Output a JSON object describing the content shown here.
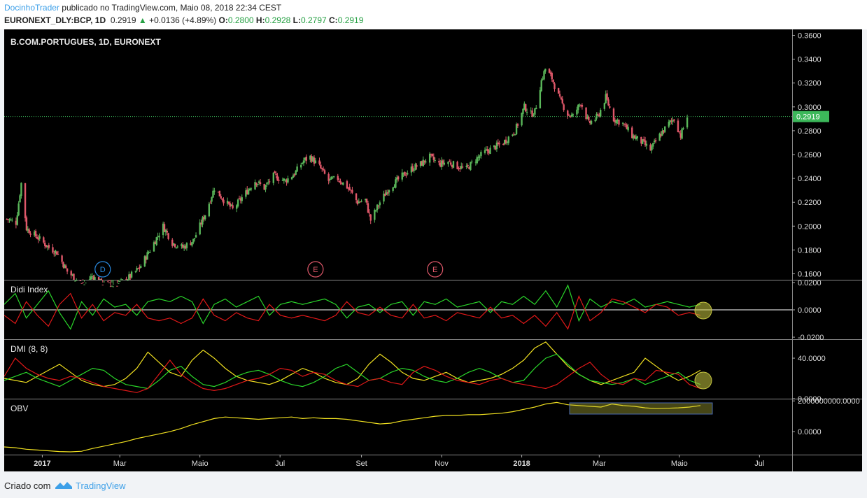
{
  "header": {
    "author": "DocinhoTrader",
    "published_text": "publicado no TradingView.com, Maio 08, 2018 22:34 CEST",
    "symbol": "EURONEXT_DLY:BCP, 1D",
    "last": "0.2919",
    "change_arrow": "▲",
    "change": "+0.0136 (+4.89%)",
    "o_label": "O:",
    "o": "0.2800",
    "h_label": "H:",
    "h": "0.2928",
    "l_label": "L:",
    "l": "0.2797",
    "c_label": "C:",
    "c": "0.2919"
  },
  "footer": {
    "created": "Criado com",
    "brand": "TradingView"
  },
  "colors": {
    "background": "#000000",
    "up": "#5ab75a",
    "down": "#e0586a",
    "didi_green": "#2ad62a",
    "didi_red": "#e01818",
    "dmi_yellow": "#f0e020",
    "obv_yellow": "#f0e020",
    "highlight": "#c8c840",
    "last_price_tag": "#3cb85a"
  },
  "chart_data": [
    {
      "type": "candlestick",
      "title": "B.COM.PORTUGUES, 1D, EURONEXT",
      "ylim": [
        0.155,
        0.365
      ],
      "y_ticks": [
        "0.1600",
        "0.1800",
        "0.2000",
        "0.2200",
        "0.2400",
        "0.2600",
        "0.2800",
        "0.3000",
        "0.3200",
        "0.3400",
        "0.3600"
      ],
      "last_price": 0.2919,
      "last_price_label": "0.2919",
      "x_ticks": [
        "2017",
        "Mar",
        "Maio",
        "Jul",
        "Set",
        "Nov",
        "2018",
        "Mar",
        "Maio",
        "Jul"
      ],
      "markers": [
        {
          "label": "D",
          "date": "2017-02-16"
        },
        {
          "label": "E",
          "date": "2017-07-28"
        },
        {
          "label": "E",
          "date": "2017-10-27"
        }
      ],
      "price_path": [
        [
          "2016-12-05",
          0.206
        ],
        [
          "2016-12-12",
          0.203
        ],
        [
          "2016-12-16",
          0.236
        ],
        [
          "2016-12-20",
          0.198
        ],
        [
          "2016-12-29",
          0.19
        ],
        [
          "2017-01-06",
          0.182
        ],
        [
          "2017-01-12",
          0.178
        ],
        [
          "2017-01-20",
          0.162
        ],
        [
          "2017-02-01",
          0.15
        ],
        [
          "2017-02-08",
          0.158
        ],
        [
          "2017-02-15",
          0.152
        ],
        [
          "2017-02-24",
          0.15
        ],
        [
          "2017-03-06",
          0.155
        ],
        [
          "2017-03-16",
          0.165
        ],
        [
          "2017-03-24",
          0.18
        ],
        [
          "2017-04-03",
          0.2
        ],
        [
          "2017-04-10",
          0.186
        ],
        [
          "2017-04-18",
          0.182
        ],
        [
          "2017-04-26",
          0.188
        ],
        [
          "2017-05-05",
          0.21
        ],
        [
          "2017-05-12",
          0.232
        ],
        [
          "2017-05-19",
          0.222
        ],
        [
          "2017-05-26",
          0.214
        ],
        [
          "2017-06-05",
          0.228
        ],
        [
          "2017-06-12",
          0.238
        ],
        [
          "2017-06-19",
          0.232
        ],
        [
          "2017-06-26",
          0.242
        ],
        [
          "2017-07-05",
          0.238
        ],
        [
          "2017-07-12",
          0.244
        ],
        [
          "2017-07-19",
          0.255
        ],
        [
          "2017-07-24",
          0.258
        ],
        [
          "2017-07-31",
          0.25
        ],
        [
          "2017-08-07",
          0.238
        ],
        [
          "2017-08-14",
          0.24
        ],
        [
          "2017-08-22",
          0.232
        ],
        [
          "2017-08-29",
          0.22
        ],
        [
          "2017-09-04",
          0.222
        ],
        [
          "2017-09-08",
          0.205
        ],
        [
          "2017-09-15",
          0.22
        ],
        [
          "2017-09-22",
          0.232
        ],
        [
          "2017-10-02",
          0.242
        ],
        [
          "2017-10-09",
          0.248
        ],
        [
          "2017-10-16",
          0.252
        ],
        [
          "2017-10-23",
          0.258
        ],
        [
          "2017-10-30",
          0.252
        ],
        [
          "2017-11-06",
          0.254
        ],
        [
          "2017-11-13",
          0.25
        ],
        [
          "2017-11-20",
          0.248
        ],
        [
          "2017-11-27",
          0.256
        ],
        [
          "2017-12-04",
          0.262
        ],
        [
          "2017-12-11",
          0.266
        ],
        [
          "2017-12-18",
          0.27
        ],
        [
          "2017-12-27",
          0.28
        ],
        [
          "2018-01-03",
          0.3
        ],
        [
          "2018-01-08",
          0.294
        ],
        [
          "2018-01-11",
          0.296
        ],
        [
          "2018-01-16",
          0.322
        ],
        [
          "2018-01-19",
          0.332
        ],
        [
          "2018-01-24",
          0.324
        ],
        [
          "2018-01-30",
          0.306
        ],
        [
          "2018-02-05",
          0.294
        ],
        [
          "2018-02-09",
          0.292
        ],
        [
          "2018-02-15",
          0.304
        ],
        [
          "2018-02-21",
          0.286
        ],
        [
          "2018-02-28",
          0.292
        ],
        [
          "2018-03-06",
          0.308
        ],
        [
          "2018-03-12",
          0.29
        ],
        [
          "2018-03-19",
          0.286
        ],
        [
          "2018-03-26",
          0.276
        ],
        [
          "2018-04-03",
          0.27
        ],
        [
          "2018-04-09",
          0.264
        ],
        [
          "2018-04-16",
          0.276
        ],
        [
          "2018-04-23",
          0.286
        ],
        [
          "2018-04-27",
          0.29
        ],
        [
          "2018-05-02",
          0.276
        ],
        [
          "2018-05-07",
          0.292
        ]
      ]
    },
    {
      "type": "line",
      "title": "Didi Index",
      "ylim": [
        -0.0215,
        0.0215
      ],
      "y_ticks": [
        "0.0200",
        "0.0000",
        "-0.0200"
      ],
      "series": [
        {
          "color": "#2ad62a",
          "values": [
            0.004,
            0.012,
            -0.006,
            0.004,
            0.014,
            -0.002,
            -0.014,
            0.006,
            -0.004,
            0.008,
            0.002,
            0.004,
            -0.004,
            0.006,
            0.008,
            0.006,
            0.01,
            0.006,
            -0.01,
            0.004,
            0.008,
            0.002,
            0.006,
            0.01,
            -0.004,
            0.004,
            0.006,
            0.004,
            0.006,
            0.008,
            0.004,
            -0.006,
            0.002,
            0.004,
            -0.002,
            0.004,
            0.006,
            -0.004,
            0.006,
            0.004,
            0.008,
            0.002,
            0.004,
            0.006,
            -0.002,
            0.006,
            0.004,
            0.01,
            0.004,
            0.014,
            0.002,
            0.018,
            -0.008,
            0.008,
            0.002,
            0.006,
            0.004,
            0.008,
            0.002,
            0.004,
            0.006,
            0.004,
            0.002,
            0.004
          ]
        },
        {
          "color": "#e01818",
          "values": [
            -0.004,
            -0.01,
            0.006,
            -0.004,
            -0.012,
            0.004,
            0.012,
            -0.006,
            0.004,
            -0.008,
            -0.002,
            -0.004,
            0.004,
            -0.006,
            -0.008,
            -0.006,
            -0.01,
            -0.006,
            0.008,
            -0.004,
            -0.008,
            -0.002,
            -0.006,
            -0.008,
            0.004,
            -0.004,
            -0.006,
            -0.004,
            -0.006,
            -0.008,
            -0.004,
            0.006,
            -0.002,
            -0.004,
            0.002,
            -0.004,
            -0.006,
            0.004,
            -0.006,
            -0.004,
            -0.008,
            -0.002,
            -0.004,
            -0.006,
            0.002,
            -0.006,
            -0.004,
            -0.01,
            -0.004,
            -0.012,
            -0.002,
            -0.014,
            0.01,
            -0.008,
            -0.002,
            0.008,
            0.006,
            0.002,
            -0.002,
            0.004,
            0.002,
            -0.004,
            -0.002,
            -0.004
          ]
        }
      ]
    },
    {
      "type": "line",
      "title": "DMI (8, 8)",
      "ylim": [
        0,
        58
      ],
      "y_ticks": [
        "40.0000",
        "0.0000"
      ],
      "series": [
        {
          "color": "#f0e020",
          "values": [
            20,
            18,
            16,
            22,
            28,
            34,
            26,
            18,
            14,
            12,
            14,
            20,
            30,
            46,
            36,
            26,
            22,
            38,
            48,
            40,
            30,
            22,
            18,
            16,
            14,
            18,
            24,
            30,
            26,
            20,
            16,
            14,
            20,
            34,
            44,
            36,
            26,
            20,
            18,
            22,
            26,
            20,
            16,
            18,
            20,
            24,
            30,
            38,
            50,
            56,
            44,
            32,
            24,
            18,
            14,
            18,
            22,
            26,
            40,
            32,
            24,
            18,
            22,
            28
          ]
        },
        {
          "color": "#2ad62a",
          "values": [
            18,
            22,
            26,
            20,
            16,
            12,
            18,
            24,
            30,
            28,
            20,
            14,
            12,
            10,
            18,
            28,
            32,
            22,
            14,
            12,
            16,
            22,
            26,
            28,
            24,
            18,
            14,
            12,
            16,
            22,
            30,
            34,
            26,
            18,
            20,
            26,
            30,
            28,
            22,
            18,
            16,
            20,
            26,
            30,
            26,
            20,
            16,
            18,
            30,
            40,
            44,
            34,
            24,
            18,
            16,
            14,
            16,
            20,
            14,
            18,
            22,
            26,
            18,
            14
          ]
        },
        {
          "color": "#e01818",
          "values": [
            22,
            40,
            30,
            24,
            20,
            18,
            22,
            20,
            16,
            12,
            10,
            8,
            6,
            10,
            24,
            38,
            24,
            16,
            10,
            8,
            10,
            14,
            18,
            20,
            24,
            30,
            28,
            22,
            26,
            24,
            18,
            14,
            12,
            18,
            20,
            16,
            14,
            26,
            32,
            28,
            22,
            18,
            16,
            14,
            18,
            20,
            16,
            14,
            12,
            10,
            14,
            22,
            30,
            36,
            24,
            16,
            14,
            20,
            18,
            28,
            26,
            24,
            14,
            10
          ]
        }
      ]
    },
    {
      "type": "line",
      "title": "OBV",
      "ylim": [
        -1500000000,
        2100000000
      ],
      "y_ticks": [
        "2000000000.0000",
        "0.0000"
      ],
      "series": [
        {
          "color": "#f0e020",
          "values": [
            -1000000000,
            -1050000000,
            -1150000000,
            -1200000000,
            -1250000000,
            -1300000000,
            -1320000000,
            -1280000000,
            -1100000000,
            -950000000,
            -800000000,
            -650000000,
            -450000000,
            -300000000,
            -150000000,
            0,
            200000000,
            450000000,
            650000000,
            850000000,
            950000000,
            900000000,
            850000000,
            800000000,
            850000000,
            900000000,
            950000000,
            850000000,
            900000000,
            850000000,
            850000000,
            800000000,
            700000000,
            600000000,
            500000000,
            550000000,
            700000000,
            800000000,
            900000000,
            1000000000,
            1050000000,
            1050000000,
            1100000000,
            1100000000,
            1150000000,
            1200000000,
            1300000000,
            1450000000,
            1600000000,
            1800000000,
            1900000000,
            1750000000,
            1700000000,
            1650000000,
            1600000000,
            1800000000,
            1700000000,
            1650000000,
            1550000000,
            1500000000,
            1520000000,
            1550000000,
            1600000000,
            1700000000
          ]
        }
      ]
    }
  ]
}
